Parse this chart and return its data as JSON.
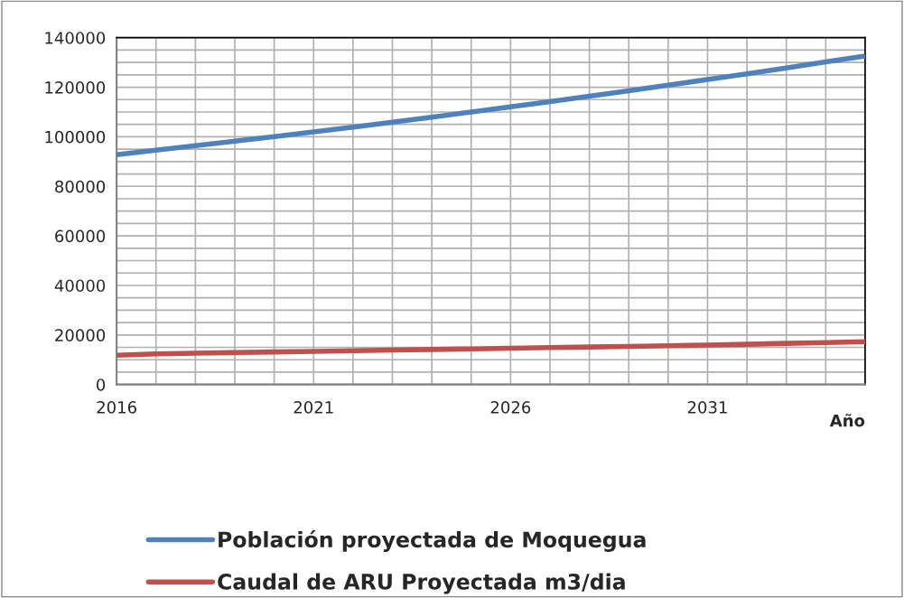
{
  "chart_data": {
    "type": "line",
    "xlabel": "Año",
    "x": [
      2016,
      2017,
      2018,
      2019,
      2020,
      2021,
      2022,
      2023,
      2024,
      2025,
      2026,
      2027,
      2028,
      2029,
      2030,
      2031,
      2032,
      2033,
      2034,
      2035
    ],
    "series": [
      {
        "name": "Población proyectada de Moquegua",
        "color": "#4f81bd",
        "values": [
          92800,
          94600,
          96400,
          98200,
          100100,
          102000,
          103900,
          105900,
          107900,
          110000,
          112100,
          114200,
          116400,
          118600,
          120800,
          123100,
          125400,
          127800,
          130200,
          132600
        ]
      },
      {
        "name": "Caudal de ARU Proyectada m3/dia",
        "color": "#c0504d",
        "values": [
          11800,
          12400,
          12650,
          12900,
          13150,
          13400,
          13650,
          13900,
          14150,
          14400,
          14650,
          14900,
          15150,
          15400,
          15650,
          15900,
          16250,
          16600,
          16950,
          17300
        ]
      }
    ],
    "xlim": [
      2016,
      2035
    ],
    "xticks": [
      2016,
      {
        "value": 2017,
        "label": null
      },
      {
        "value": 2018,
        "label": null
      },
      {
        "value": 2019,
        "label": null
      },
      {
        "value": 2020,
        "label": null
      },
      2021,
      {
        "value": 2022,
        "label": null
      },
      {
        "value": 2023,
        "label": null
      },
      {
        "value": 2024,
        "label": null
      },
      {
        "value": 2025,
        "label": null
      },
      2026,
      {
        "value": 2027,
        "label": null
      },
      {
        "value": 2028,
        "label": null
      },
      {
        "value": 2029,
        "label": null
      },
      {
        "value": 2030,
        "label": null
      },
      2031,
      {
        "value": 2032,
        "label": null
      },
      {
        "value": 2033,
        "label": null
      },
      {
        "value": 2034,
        "label": null
      },
      {
        "value": 2035,
        "label": null
      }
    ],
    "ylim": [
      0,
      140000
    ],
    "yticks": [
      0,
      {
        "value": 5000,
        "label": null
      },
      {
        "value": 10000,
        "label": null
      },
      {
        "value": 15000,
        "label": null
      },
      20000,
      {
        "value": 25000,
        "label": null
      },
      {
        "value": 30000,
        "label": null
      },
      {
        "value": 35000,
        "label": null
      },
      40000,
      {
        "value": 45000,
        "label": null
      },
      {
        "value": 50000,
        "label": null
      },
      {
        "value": 55000,
        "label": null
      },
      60000,
      {
        "value": 65000,
        "label": null
      },
      {
        "value": 70000,
        "label": null
      },
      {
        "value": 75000,
        "label": null
      },
      80000,
      {
        "value": 85000,
        "label": null
      },
      {
        "value": 90000,
        "label": null
      },
      {
        "value": 95000,
        "label": null
      },
      100000,
      {
        "value": 105000,
        "label": null
      },
      {
        "value": 110000,
        "label": null
      },
      {
        "value": 115000,
        "label": null
      },
      120000,
      {
        "value": 125000,
        "label": null
      },
      {
        "value": 130000,
        "label": null
      },
      {
        "value": 135000,
        "label": null
      },
      140000
    ],
    "grid": true,
    "legend": "bottom",
    "marker": "none",
    "line_style": "solid"
  }
}
